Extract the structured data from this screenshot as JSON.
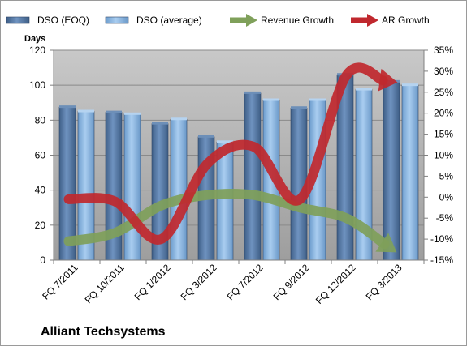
{
  "chart_data": {
    "type": "bar",
    "categories": [
      "FQ 7/2011",
      "FQ 10/2011",
      "FQ 1/2012",
      "FQ 3/2012",
      "FQ 7/2012",
      "FQ 9/2012",
      "FQ 12/2012",
      "FQ 3/2013"
    ],
    "series": [
      {
        "name": "DSO (EOQ)",
        "type": "bar",
        "axis": "left",
        "color": "#5b7eaa",
        "values": [
          87.5,
          84.5,
          78,
          70.5,
          95.5,
          87,
          106,
          102
        ]
      },
      {
        "name": "DSO (average)",
        "type": "bar",
        "axis": "left",
        "color": "#8ab4df",
        "values": [
          85,
          83.5,
          80.5,
          67.5,
          91.5,
          91.5,
          97.5,
          100
        ]
      },
      {
        "name": "Revenue Growth",
        "type": "line",
        "axis": "right",
        "color": "#7fa05a",
        "values": [
          -10.5,
          -8.5,
          -2,
          0.5,
          0.5,
          -2.5,
          -5,
          -12.5
        ]
      },
      {
        "name": "AR Growth",
        "type": "line",
        "axis": "right",
        "color": "#c0282e",
        "values": [
          -0.5,
          -1,
          -10,
          8,
          12,
          -0.5,
          29,
          27.5
        ]
      }
    ],
    "ylabel": "Days",
    "ylim": [
      0,
      120
    ],
    "yticks": [
      "0",
      "20",
      "40",
      "60",
      "80",
      "100",
      "120"
    ],
    "y2lim": [
      -15,
      35
    ],
    "y2ticks": [
      "-15%",
      "-10%",
      "-5%",
      "0%",
      "5%",
      "10%",
      "15%",
      "20%",
      "25%",
      "30%",
      "35%"
    ],
    "legend_position": "top",
    "grid": "horizontal",
    "plot_background": "#a8a8a8"
  },
  "company": "Alliant Techsystems"
}
